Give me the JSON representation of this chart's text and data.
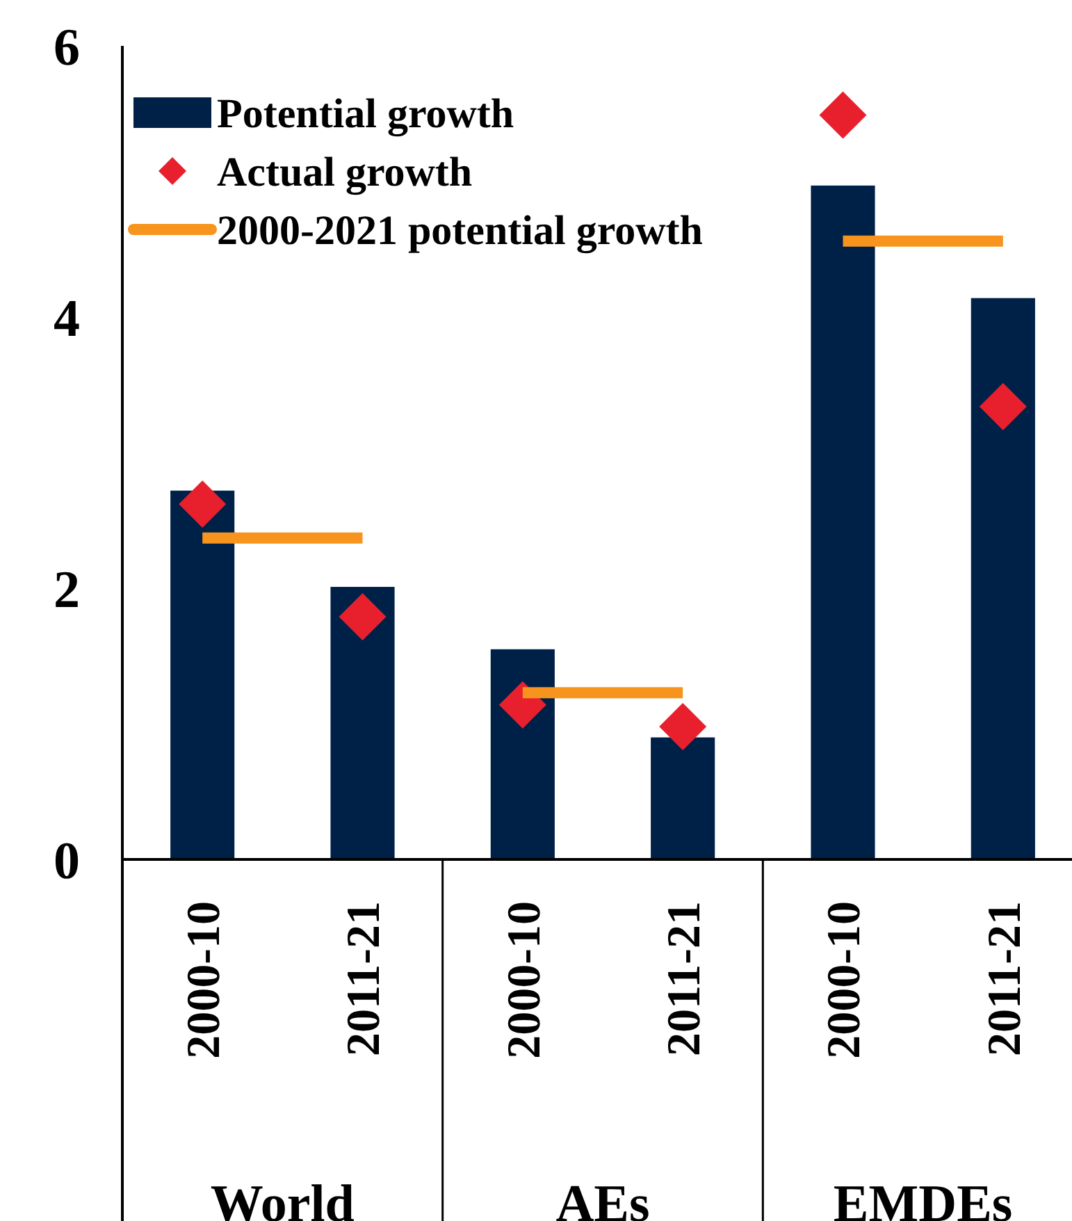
{
  "chart_data": {
    "type": "bar",
    "categories": [
      "2000-10",
      "2011-21",
      "2000-10",
      "2011-21",
      "2000-10",
      "2011-21"
    ],
    "annotations": [
      "World",
      "AEs",
      "EMDEs"
    ],
    "series": [
      {
        "name": "Potential growth",
        "color": "#002147",
        "values": [
          2.72,
          2.01,
          1.55,
          0.9,
          4.97,
          4.14
        ]
      },
      {
        "name": "Actual growth",
        "type": "scatter",
        "color": "#e8202e",
        "marker": "diamond",
        "values": [
          2.62,
          1.79,
          1.14,
          0.98,
          5.49,
          3.34
        ]
      },
      {
        "name": "2000-2021 potential growth",
        "type": "line",
        "color": "#f7941d",
        "values": [
          2.37,
          2.37,
          null,
          null,
          null,
          null
        ]
      },
      {
        "type": "line",
        "color": "#f7941d",
        "values": [
          null,
          null,
          1.23,
          1.23,
          null,
          null
        ]
      },
      {
        "type": "line",
        "color": "#f7941d",
        "values": [
          null,
          null,
          null,
          null,
          4.56,
          4.56
        ]
      }
    ],
    "ylim": [
      0,
      6
    ],
    "yticks": [
      0,
      2,
      4,
      6
    ],
    "legend": "top left",
    "grid": false
  }
}
